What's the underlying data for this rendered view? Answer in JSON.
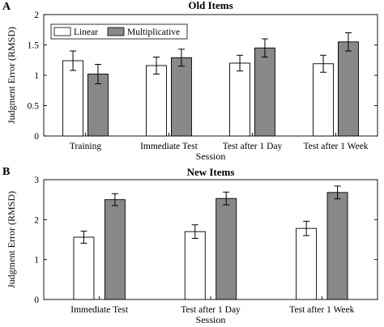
{
  "chart_data": [
    {
      "type": "bar",
      "panel_label": "A",
      "title": "Old Items",
      "xlabel": "Session",
      "ylabel": "Judgment Error (RMSD)",
      "categories": [
        "Training",
        "Immediate Test",
        "Test after 1 Day",
        "Test after 1 Week"
      ],
      "ylim": [
        0,
        2
      ],
      "yticks": [
        0,
        0.5,
        1,
        1.5,
        2
      ],
      "ytick_labels": [
        "0",
        "0.5",
        "1",
        "1.5",
        "2"
      ],
      "legend": {
        "placement": "top-left",
        "entries": [
          "Linear",
          "Multiplicative"
        ]
      },
      "series": [
        {
          "name": "Linear",
          "color": "#ffffff",
          "values": [
            1.24,
            1.16,
            1.2,
            1.19
          ],
          "errors": [
            0.16,
            0.14,
            0.13,
            0.14
          ]
        },
        {
          "name": "Multiplicative",
          "color": "#888888",
          "values": [
            1.02,
            1.29,
            1.45,
            1.55
          ],
          "errors": [
            0.16,
            0.14,
            0.15,
            0.15
          ]
        }
      ]
    },
    {
      "type": "bar",
      "panel_label": "B",
      "title": "New Items",
      "xlabel": "Session",
      "ylabel": "Judgment Error (RMSD)",
      "categories": [
        "Immediate Test",
        "Test after 1 Day",
        "Test after 1 Week"
      ],
      "ylim": [
        0,
        3
      ],
      "yticks": [
        0,
        1,
        2,
        3
      ],
      "ytick_labels": [
        "0",
        "1",
        "2",
        "3"
      ],
      "series": [
        {
          "name": "Linear",
          "color": "#ffffff",
          "values": [
            1.56,
            1.7,
            1.78
          ],
          "errors": [
            0.15,
            0.17,
            0.18
          ]
        },
        {
          "name": "Multiplicative",
          "color": "#888888",
          "values": [
            2.5,
            2.53,
            2.68
          ],
          "errors": [
            0.15,
            0.16,
            0.16
          ]
        }
      ]
    }
  ]
}
